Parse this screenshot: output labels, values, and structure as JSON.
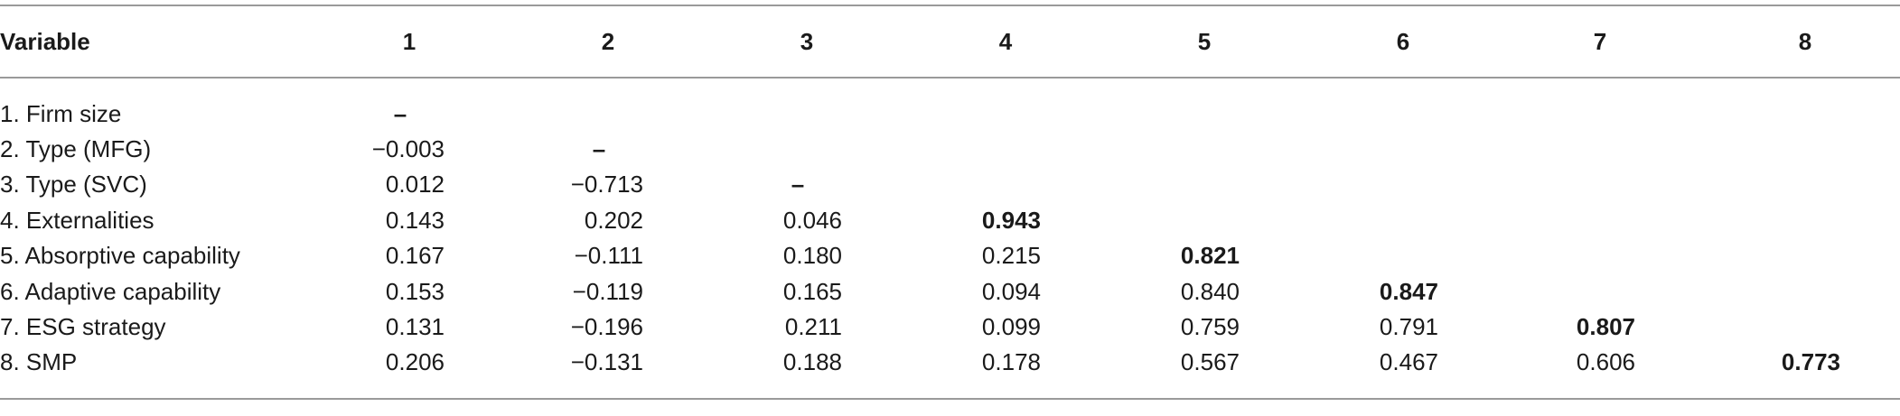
{
  "table": {
    "header": [
      "Variable",
      "1",
      "2",
      "3",
      "4",
      "5",
      "6",
      "7",
      "8"
    ],
    "rows": [
      {
        "label": "1. Firm size",
        "cells": [
          "–"
        ]
      },
      {
        "label": "2. Type (MFG)",
        "cells": [
          "−0.003",
          "–"
        ]
      },
      {
        "label": "3. Type (SVC)",
        "cells": [
          "0.012",
          "−0.713",
          "–"
        ]
      },
      {
        "label": "4. Externalities",
        "cells": [
          "0.143",
          "0.202",
          "0.046",
          "0.943"
        ]
      },
      {
        "label": "5. Absorptive capability",
        "cells": [
          "0.167",
          "−0.111",
          "0.180",
          "0.215",
          "0.821"
        ]
      },
      {
        "label": "6. Adaptive capability",
        "cells": [
          "0.153",
          "−0.119",
          "0.165",
          "0.094",
          "0.840",
          "0.847"
        ]
      },
      {
        "label": "7. ESG strategy",
        "cells": [
          "0.131",
          "−0.196",
          "0.211",
          "0.099",
          "0.759",
          "0.791",
          "0.807"
        ]
      },
      {
        "label": "8. SMP",
        "cells": [
          "0.206",
          "−0.131",
          "0.188",
          "0.178",
          "0.567",
          "0.467",
          "0.606",
          "0.773"
        ]
      }
    ]
  }
}
